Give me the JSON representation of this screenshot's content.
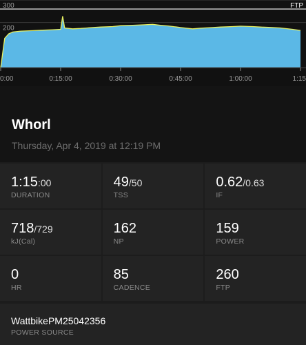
{
  "chart": {
    "y_labels": [
      "300",
      "200"
    ],
    "ftp_label": "FTP",
    "x_labels": [
      "0:00",
      "0:15:00",
      "0:30:00",
      "0:45:00",
      "1:00:00",
      "1:15"
    ],
    "colors": {
      "fill": "#5bb8e6",
      "line": "#e8f060",
      "ftp_line": "#ffffff"
    }
  },
  "chart_data": {
    "type": "area",
    "ylim": [
      0,
      300
    ],
    "ftp": 260,
    "x_unit": "minutes",
    "x": [
      0,
      1,
      2,
      3,
      5,
      8,
      10,
      13,
      15,
      15.5,
      16,
      18,
      20,
      23,
      25,
      28,
      30,
      33,
      36,
      38,
      40,
      42,
      45,
      48,
      50,
      53,
      55,
      58,
      60,
      63,
      65,
      68,
      70,
      73,
      75
    ],
    "y": [
      0,
      130,
      150,
      158,
      162,
      164,
      166,
      168,
      170,
      228,
      176,
      172,
      174,
      178,
      180,
      182,
      186,
      188,
      190,
      192,
      188,
      185,
      178,
      172,
      175,
      178,
      180,
      182,
      184,
      182,
      180,
      178,
      176,
      170,
      165
    ]
  },
  "workout": {
    "title": "Whorl",
    "date": "Thursday, Apr 4, 2019 at 12:19 PM"
  },
  "metrics": [
    {
      "main": "1:15",
      "sub": ":00",
      "label": "DURATION"
    },
    {
      "main": "49",
      "sub": "/50",
      "label": "TSS"
    },
    {
      "main": "0.62",
      "sub": "/0.63",
      "label": "IF"
    },
    {
      "main": "718",
      "sub": "/729",
      "label": "kJ(Cal)"
    },
    {
      "main": "162",
      "sub": "",
      "label": "NP"
    },
    {
      "main": "159",
      "sub": "",
      "label": "POWER"
    },
    {
      "main": "0",
      "sub": "",
      "label": "HR"
    },
    {
      "main": "85",
      "sub": "",
      "label": "CADENCE"
    },
    {
      "main": "260",
      "sub": "",
      "label": "FTP"
    }
  ],
  "power_source": {
    "value": "WattbikePM25042356",
    "label": "POWER SOURCE"
  }
}
